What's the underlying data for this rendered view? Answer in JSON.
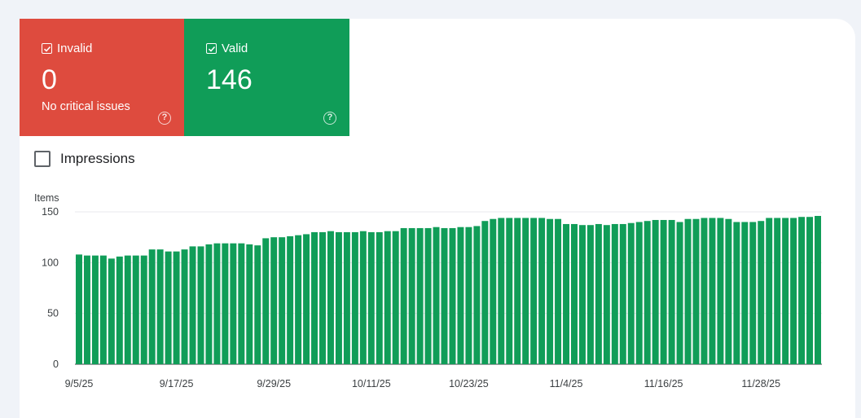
{
  "tiles": {
    "invalid": {
      "label": "Invalid",
      "value": "0",
      "subtitle": "No critical issues",
      "help": "?",
      "color": "#de4b3e"
    },
    "valid": {
      "label": "Valid",
      "value": "146",
      "help": "?",
      "color": "#109d58"
    }
  },
  "impressions": {
    "label": "Impressions",
    "checked": false
  },
  "chart_data": {
    "type": "bar",
    "ylabel": "Items",
    "ylim": [
      0,
      150
    ],
    "yticks": [
      0,
      50,
      100,
      150
    ],
    "grid": true,
    "color": "#109d58",
    "xtick_labels": [
      "9/5/25",
      "9/17/25",
      "9/29/25",
      "10/11/25",
      "10/23/25",
      "11/4/25",
      "11/16/25",
      "11/28/25"
    ],
    "xtick_indices": [
      0,
      12,
      24,
      36,
      48,
      60,
      72,
      84
    ],
    "values": [
      108,
      107,
      107,
      107,
      104,
      106,
      107,
      107,
      107,
      113,
      113,
      111,
      111,
      113,
      116,
      116,
      118,
      119,
      119,
      119,
      119,
      118,
      117,
      124,
      125,
      125,
      126,
      127,
      128,
      130,
      130,
      131,
      130,
      130,
      130,
      131,
      130,
      130,
      131,
      131,
      134,
      134,
      134,
      134,
      135,
      134,
      134,
      135,
      135,
      136,
      141,
      143,
      144,
      144,
      144,
      144,
      144,
      144,
      143,
      143,
      138,
      138,
      137,
      137,
      138,
      137,
      138,
      138,
      139,
      140,
      141,
      142,
      142,
      142,
      140,
      143,
      143,
      144,
      144,
      144,
      143,
      140,
      140,
      140,
      141,
      144,
      144,
      144,
      144,
      145,
      145,
      146
    ]
  }
}
